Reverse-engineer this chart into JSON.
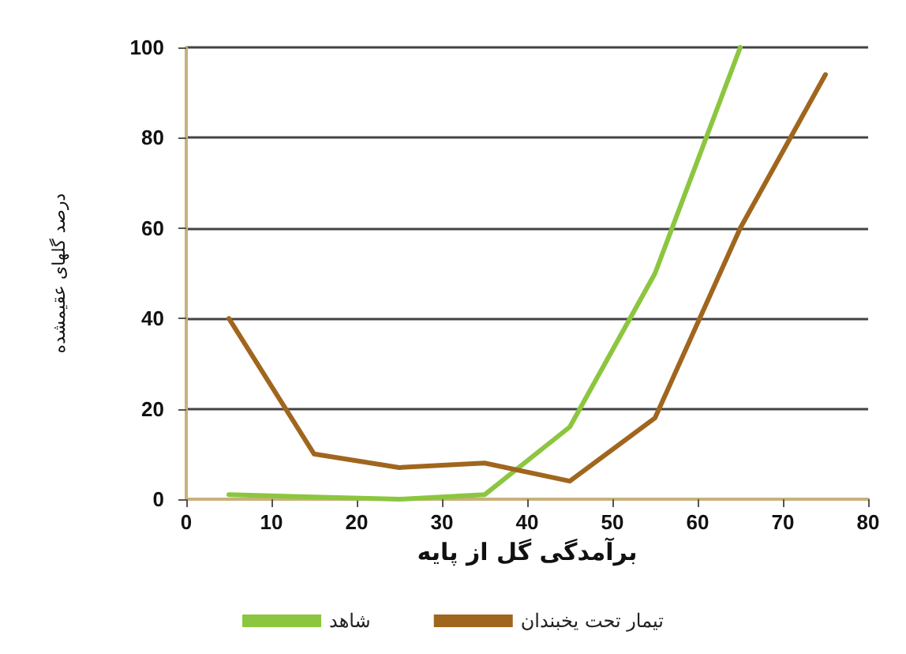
{
  "chart_data": {
    "type": "line",
    "xlabel": "برآمدگی گل از پایه",
    "ylabel": "درصد گلهای عقیمشده",
    "xlim": [
      0,
      80
    ],
    "xticks": [
      0,
      10,
      20,
      30,
      40,
      50,
      60,
      70,
      80
    ],
    "ylim": [
      0,
      100
    ],
    "yticks": [
      0,
      20,
      40,
      60,
      80,
      100
    ],
    "grid": "y",
    "legend": "bottom",
    "marker": "none",
    "line_style": "solid",
    "series": [
      {
        "name": "شاهد",
        "color": "#8cc63f",
        "x": [
          5,
          15,
          25,
          35,
          45,
          55,
          65
        ],
        "values": [
          1,
          0.5,
          0,
          1,
          16,
          50,
          100
        ]
      },
      {
        "name": "تیمار تحت یخبندان",
        "color": "#a0661e",
        "x": [
          5,
          15,
          25,
          35,
          45,
          55,
          65,
          75
        ],
        "values": [
          40,
          10,
          7,
          8,
          4,
          18,
          60,
          94
        ]
      }
    ]
  }
}
